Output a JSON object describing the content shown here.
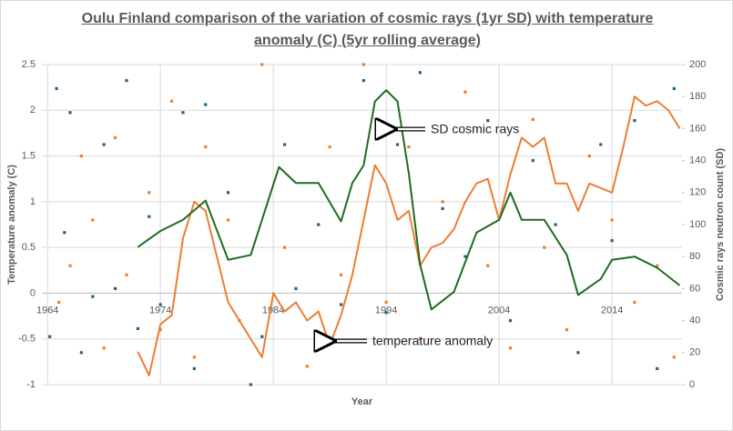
{
  "chart_data": {
    "type": "line",
    "title": "Oulu Finland comparison of the variation of cosmic rays (1yr SD) with temperature anomaly (C) (5yr rolling average)",
    "x_label": "Year",
    "y_label": "Temperature anomaly (C)",
    "y2_label": "Cosmic rays neutron count  (SD)",
    "annotations": [
      "SD cosmic rays",
      "temperature anomaly"
    ],
    "xlim": [
      1963.5,
      2020.2
    ],
    "xticks": [
      1964,
      1974,
      1984,
      1994,
      2004,
      2014
    ],
    "ylim": [
      -1,
      2.5
    ],
    "yticks": [
      -1,
      -0.5,
      0,
      0.5,
      1,
      1.5,
      2,
      2.5
    ],
    "y2lim": [
      0,
      200
    ],
    "y2ticks": [
      0,
      20,
      40,
      60,
      80,
      100,
      120,
      140,
      160,
      180,
      200
    ],
    "grid": true,
    "series": [
      {
        "kind": "scatter",
        "color": "#1f6391",
        "axis": "y2",
        "x": [
          1964.2,
          1964.8,
          1965.5,
          1966,
          1967,
          1968,
          1969,
          1970,
          1971,
          1972,
          1973,
          1974,
          1976,
          1977,
          1978,
          1980,
          1982,
          1983,
          1985,
          1986,
          1988,
          1990,
          1992,
          1994,
          1995,
          1997,
          1999,
          2001,
          2003,
          2005,
          2007,
          2009,
          2011,
          2013,
          2014,
          2016,
          2018,
          2019.5
        ],
        "values": [
          30,
          185,
          95,
          170,
          20,
          55,
          150,
          60,
          190,
          35,
          105,
          50,
          170,
          10,
          175,
          120,
          0,
          30,
          150,
          60,
          100,
          50,
          190,
          45,
          150,
          195,
          110,
          80,
          165,
          40,
          140,
          100,
          20,
          150,
          90,
          165,
          10,
          185
        ]
      },
      {
        "kind": "scatter",
        "color": "#ed7d31",
        "x": [
          1965,
          1966,
          1967,
          1968,
          1969,
          1970,
          1971,
          1973,
          1974,
          1975,
          1977,
          1978,
          1980,
          1981,
          1983,
          1985,
          1987,
          1989,
          1990,
          1992,
          1994,
          1996,
          1997,
          1999,
          2001,
          2003,
          2005,
          2007,
          2008,
          2010,
          2012,
          2014,
          2016,
          2018,
          2019.5
        ],
        "values": [
          -0.1,
          0.3,
          1.5,
          0.8,
          -0.6,
          1.7,
          0.2,
          1.1,
          -0.4,
          2.1,
          -0.7,
          1.6,
          0.8,
          -0.3,
          2.5,
          0.5,
          -0.8,
          1.6,
          0.2,
          2.5,
          -0.1,
          1.6,
          -0.5,
          1.0,
          2.2,
          0.3,
          -0.6,
          1.9,
          0.5,
          -0.4,
          1.5,
          0.8,
          -0.1,
          0.3,
          -0.7
        ]
      },
      {
        "kind": "line",
        "color": "#ed7d31",
        "x": [
          1972,
          1973,
          1974,
          1975,
          1976,
          1977,
          1978,
          1979,
          1980,
          1982,
          1983,
          1984,
          1985,
          1986,
          1987,
          1988,
          1989,
          1990,
          1991,
          1992,
          1993,
          1994,
          1995,
          1996,
          1997,
          1998,
          1999,
          2000,
          2001,
          2002,
          2003,
          2004,
          2005,
          2006,
          2007,
          2008,
          2009,
          2010,
          2011,
          2012,
          2014,
          2015,
          2016,
          2017,
          2018,
          2019,
          2020
        ],
        "values": [
          -0.64,
          -0.9,
          -0.34,
          -0.24,
          0.6,
          1.0,
          0.9,
          0.4,
          -0.1,
          -0.5,
          -0.7,
          0,
          -0.2,
          -0.1,
          -0.3,
          -0.2,
          -0.57,
          -0.24,
          0.2,
          0.8,
          1.4,
          1.2,
          0.8,
          0.9,
          0.3,
          0.5,
          0.55,
          0.7,
          1.0,
          1.2,
          1.25,
          0.8,
          1.3,
          1.7,
          1.6,
          1.7,
          1.2,
          1.2,
          0.9,
          1.2,
          1.1,
          1.6,
          2.15,
          2.05,
          2.1,
          2.0,
          1.8
        ]
      },
      {
        "kind": "line",
        "color": "#1e6b1e",
        "axis": "y2",
        "x": [
          1972,
          1974,
          1976,
          1978,
          1980,
          1982,
          1983,
          1984.5,
          1986,
          1988,
          1990,
          1991,
          1992,
          1993,
          1994,
          1995,
          1996,
          1997,
          1998,
          2000,
          2002,
          2004,
          2005,
          2006,
          2008,
          2010,
          2011,
          2013,
          2014,
          2016,
          2018,
          2020
        ],
        "values": [
          86,
          96,
          103,
          115,
          78,
          81,
          103,
          136,
          126,
          126,
          102,
          126,
          137,
          177,
          184,
          177,
          132,
          75,
          47,
          58,
          95,
          103,
          120,
          103,
          103,
          81,
          56,
          66,
          78,
          80,
          73,
          62
        ]
      }
    ]
  }
}
